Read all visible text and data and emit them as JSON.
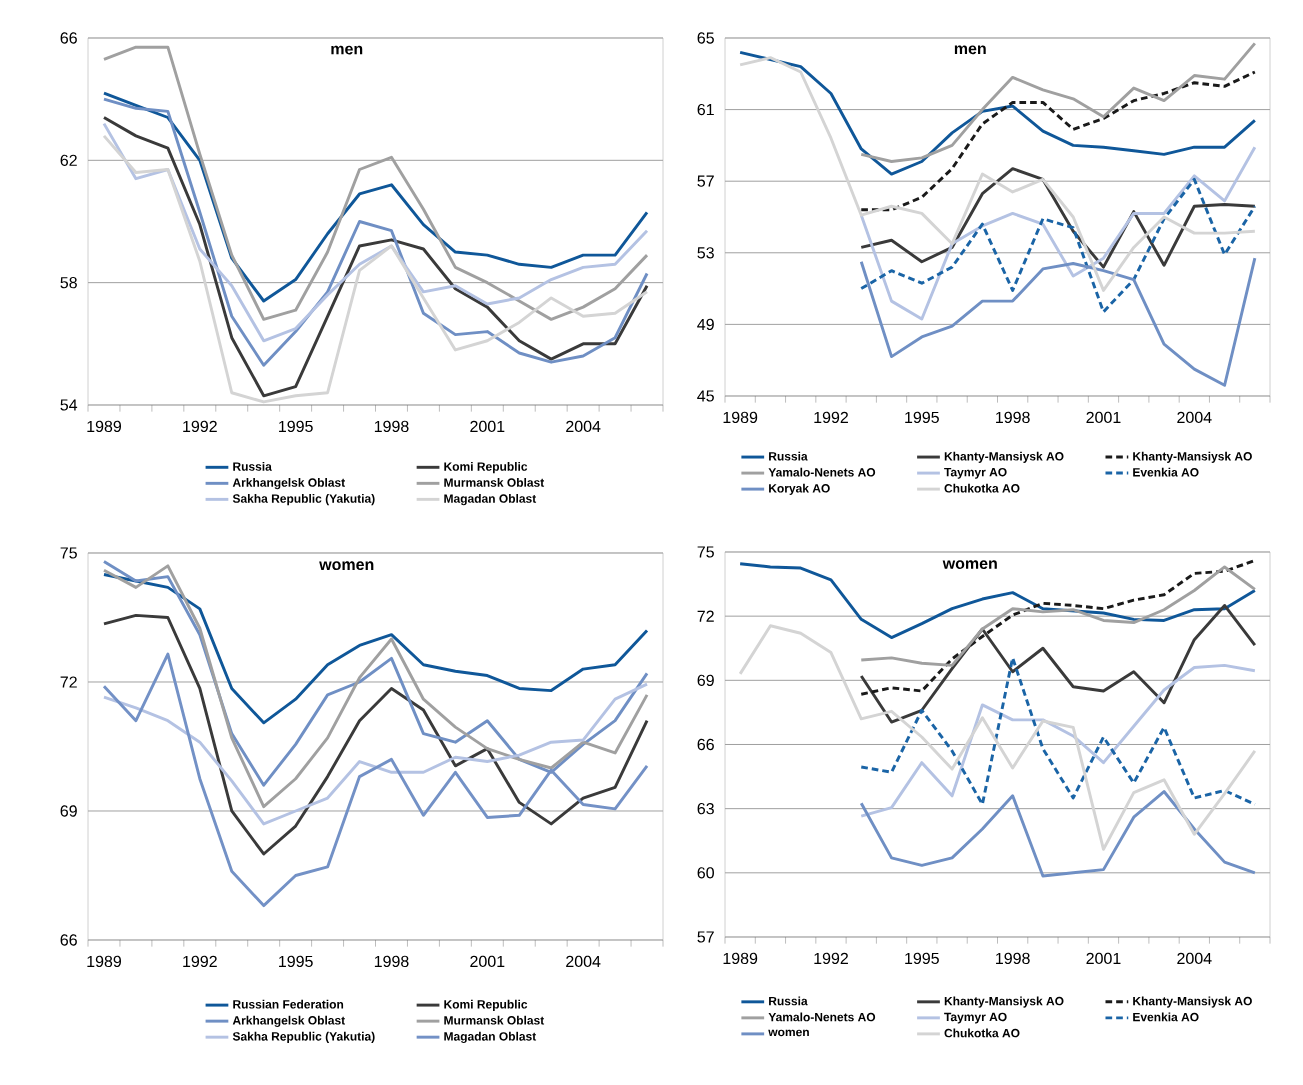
{
  "chart_data": [
    {
      "type": "line",
      "title": "men",
      "categories": [
        "1989",
        null,
        null,
        "1992",
        null,
        null,
        "1995",
        null,
        null,
        "1998",
        null,
        null,
        "2001",
        null,
        null,
        "2004",
        null,
        null
      ],
      "ylim": [
        54,
        66
      ],
      "yticks": [
        54,
        58,
        62,
        66
      ],
      "grid": "y",
      "legend": "bottom",
      "line_style": "solid",
      "series": [
        {
          "name": "Russia",
          "color": "#0f5799",
          "values": [
            64.2,
            63.8,
            63.4,
            62.0,
            58.8,
            57.4,
            58.1,
            59.6,
            60.9,
            61.2,
            59.9,
            59.0,
            58.9,
            58.6,
            58.5,
            58.9,
            58.9,
            60.3
          ]
        },
        {
          "name": "Komi Republic",
          "color": "#3a3a3a",
          "values": [
            63.4,
            62.8,
            62.4,
            59.9,
            56.2,
            54.3,
            54.6,
            56.9,
            59.2,
            59.4,
            59.1,
            57.8,
            57.2,
            56.1,
            55.5,
            56.0,
            56.0,
            57.9
          ]
        },
        {
          "name": "Arkhangelsk Oblast",
          "color": "#6f8fc4",
          "values": [
            64.0,
            63.7,
            63.6,
            60.3,
            56.9,
            55.3,
            56.4,
            57.7,
            60.0,
            59.7,
            57.0,
            56.3,
            56.4,
            55.7,
            55.4,
            55.6,
            56.2,
            58.3
          ]
        },
        {
          "name": "Murmansk Oblast",
          "color": "#a0a0a0",
          "values": [
            65.3,
            65.7,
            65.7,
            62.2,
            58.9,
            56.8,
            57.1,
            59.0,
            61.7,
            62.1,
            60.4,
            58.5,
            58.0,
            57.4,
            56.8,
            57.2,
            57.8,
            58.9
          ]
        },
        {
          "name": "Sakha Republic (Yakutia)",
          "color": "#b4c2e3",
          "values": [
            63.2,
            61.4,
            61.7,
            59.1,
            57.9,
            56.1,
            56.5,
            57.6,
            58.6,
            59.2,
            57.7,
            57.9,
            57.3,
            57.5,
            58.1,
            58.5,
            58.6,
            59.7
          ]
        },
        {
          "name": "Magadan Oblast",
          "color": "#d4d4d4",
          "values": [
            62.8,
            61.6,
            61.7,
            58.7,
            54.4,
            54.1,
            54.3,
            54.4,
            58.4,
            59.2,
            57.5,
            55.8,
            56.1,
            56.7,
            57.5,
            56.9,
            57.0,
            57.7
          ]
        }
      ]
    },
    {
      "type": "line",
      "title": "men",
      "categories": [
        "1989",
        null,
        null,
        "1992",
        null,
        null,
        "1995",
        null,
        null,
        "1998",
        null,
        null,
        "2001",
        null,
        null,
        "2004",
        null,
        null
      ],
      "ylim": [
        45,
        65
      ],
      "yticks": [
        45,
        49,
        53,
        57,
        61,
        65
      ],
      "grid": "y",
      "legend": "bottom",
      "line_style": "solid",
      "series": [
        {
          "name": "Russia",
          "color": "#0f5799",
          "values": [
            64.2,
            63.8,
            63.4,
            61.9,
            58.8,
            57.4,
            58.1,
            59.7,
            60.9,
            61.2,
            59.8,
            59.0,
            58.9,
            58.7,
            58.5,
            58.9,
            58.9,
            60.4
          ]
        },
        {
          "name": "Khanty-Mansiysk AO",
          "color": "#3a3a3a",
          "values": [
            null,
            null,
            null,
            null,
            53.3,
            53.7,
            52.5,
            53.3,
            56.3,
            57.7,
            57.1,
            54.2,
            52.2,
            55.3,
            52.3,
            55.6,
            55.7,
            55.6
          ]
        },
        {
          "name": "Khanty-Mansiysk AO",
          "color": "#1a1a1a",
          "line_style": "dashed",
          "values": [
            null,
            null,
            null,
            null,
            55.4,
            55.4,
            56.1,
            57.7,
            60.2,
            61.4,
            61.4,
            59.9,
            60.5,
            61.5,
            61.9,
            62.5,
            62.3,
            63.1
          ]
        },
        {
          "name": "Yamalo-Nenets AO",
          "color": "#a0a0a0",
          "values": [
            null,
            null,
            null,
            null,
            58.5,
            58.1,
            58.3,
            59.0,
            61.0,
            62.8,
            62.1,
            61.6,
            60.6,
            62.2,
            61.5,
            62.9,
            62.7,
            64.7
          ]
        },
        {
          "name": "Taymyr AO",
          "color": "#b4c2e3",
          "values": [
            null,
            null,
            null,
            null,
            55.1,
            50.3,
            49.3,
            53.5,
            54.5,
            55.2,
            54.6,
            51.7,
            52.7,
            55.2,
            55.2,
            57.3,
            55.9,
            58.9
          ]
        },
        {
          "name": "Evenkia AO",
          "color": "#1a64a6",
          "line_style": "dashed",
          "values": [
            null,
            null,
            null,
            null,
            51.0,
            52.0,
            51.3,
            52.2,
            54.6,
            50.9,
            54.9,
            54.4,
            49.7,
            51.5,
            54.9,
            57.1,
            52.9,
            55.6
          ]
        },
        {
          "name": "Koryak AO",
          "color": "#6f8fc4",
          "values": [
            null,
            null,
            null,
            null,
            52.5,
            47.2,
            48.3,
            48.9,
            50.3,
            50.3,
            52.1,
            52.4,
            52.0,
            51.5,
            47.9,
            46.5,
            45.6,
            52.7
          ]
        },
        {
          "name": "Chukotka AO",
          "color": "#d4d4d4",
          "values": [
            63.5,
            63.9,
            63.1,
            59.4,
            55.1,
            55.6,
            55.2,
            53.5,
            57.4,
            56.4,
            57.1,
            55.0,
            50.9,
            53.3,
            55.0,
            54.1,
            54.1,
            54.2
          ]
        }
      ]
    },
    {
      "type": "line",
      "title": "women",
      "categories": [
        "1989",
        null,
        null,
        "1992",
        null,
        null,
        "1995",
        null,
        null,
        "1998",
        null,
        null,
        "2001",
        null,
        null,
        "2004",
        null,
        null
      ],
      "ylim": [
        66,
        75
      ],
      "yticks": [
        66,
        69,
        72,
        75
      ],
      "grid": "y",
      "legend": "bottom",
      "line_style": "solid",
      "series": [
        {
          "name": "Russian Federation",
          "color": "#0f5799",
          "values": [
            74.5,
            74.35,
            74.2,
            73.7,
            71.85,
            71.05,
            71.6,
            72.4,
            72.85,
            73.1,
            72.4,
            72.25,
            72.15,
            71.85,
            71.8,
            72.3,
            72.4,
            73.2
          ]
        },
        {
          "name": "Komi Republic",
          "color": "#3a3a3a",
          "values": [
            73.35,
            73.55,
            73.5,
            71.85,
            69.0,
            68.0,
            68.65,
            69.8,
            71.1,
            71.85,
            71.35,
            70.05,
            70.45,
            69.2,
            68.7,
            69.3,
            69.55,
            71.1
          ]
        },
        {
          "name": "Arkhangelsk Oblast",
          "color": "#6f8fc4",
          "values": [
            74.8,
            74.35,
            74.45,
            73.1,
            70.8,
            69.6,
            70.55,
            71.7,
            72.0,
            72.55,
            70.8,
            70.6,
            71.1,
            70.2,
            69.9,
            70.55,
            71.1,
            72.2
          ]
        },
        {
          "name": "Murmansk Oblast",
          "color": "#a0a0a0",
          "values": [
            74.6,
            74.2,
            74.7,
            73.25,
            70.7,
            69.1,
            69.75,
            70.7,
            72.1,
            73.0,
            71.6,
            70.95,
            70.45,
            70.2,
            70.0,
            70.6,
            70.35,
            71.7
          ]
        },
        {
          "name": "Sakha Republic (Yakutia)",
          "color": "#b4c2e3",
          "values": [
            71.65,
            71.4,
            71.1,
            70.6,
            69.7,
            68.7,
            69.0,
            69.3,
            70.15,
            69.9,
            69.9,
            70.25,
            70.15,
            70.3,
            70.6,
            70.65,
            71.6,
            71.95
          ]
        },
        {
          "name": "Magadan Oblast",
          "color": "#7391c6",
          "values": [
            71.9,
            71.1,
            72.65,
            69.75,
            67.6,
            66.8,
            67.5,
            67.7,
            69.8,
            70.2,
            68.9,
            69.9,
            68.85,
            68.9,
            69.95,
            69.15,
            69.05,
            70.05
          ]
        }
      ]
    },
    {
      "type": "line",
      "title": "women",
      "categories": [
        "1989",
        null,
        null,
        "1992",
        null,
        null,
        "1995",
        null,
        null,
        "1998",
        null,
        null,
        "2001",
        null,
        null,
        "2004",
        null,
        null
      ],
      "ylim": [
        57,
        75
      ],
      "yticks": [
        57,
        60,
        63,
        66,
        69,
        72,
        75
      ],
      "grid": "y",
      "legend": "bottom",
      "line_style": "solid",
      "series": [
        {
          "name": "Russia",
          "color": "#0f5799",
          "values": [
            74.45,
            74.3,
            74.25,
            73.7,
            71.85,
            71.0,
            71.65,
            72.35,
            72.8,
            73.1,
            72.35,
            72.25,
            72.15,
            71.85,
            71.8,
            72.3,
            72.35,
            73.2
          ]
        },
        {
          "name": "Khanty-Mansiysk AO",
          "color": "#3a3a3a",
          "values": [
            null,
            null,
            null,
            null,
            69.2,
            67.05,
            67.6,
            69.55,
            71.4,
            69.4,
            70.5,
            68.7,
            68.5,
            69.4,
            67.95,
            70.9,
            72.5,
            70.65
          ]
        },
        {
          "name": "Khanty-Mansiysk AO",
          "color": "#1a1a1a",
          "line_style": "dashed",
          "values": [
            null,
            null,
            null,
            null,
            68.35,
            68.65,
            68.5,
            70.0,
            71.05,
            72.05,
            72.6,
            72.5,
            72.35,
            72.75,
            73.0,
            74.0,
            74.1,
            74.6
          ]
        },
        {
          "name": "Yamalo-Nenets AO",
          "color": "#a0a0a0",
          "values": [
            null,
            null,
            null,
            null,
            69.95,
            70.05,
            69.8,
            69.7,
            71.4,
            72.35,
            72.2,
            72.3,
            71.8,
            71.7,
            72.3,
            73.2,
            74.3,
            73.25
          ]
        },
        {
          "name": "Taymyr AO",
          "color": "#b4c2e3",
          "values": [
            null,
            null,
            null,
            null,
            62.65,
            63.05,
            65.15,
            63.6,
            67.85,
            67.15,
            67.15,
            66.4,
            65.15,
            66.85,
            68.55,
            69.6,
            69.7,
            69.45
          ]
        },
        {
          "name": "Evenkia AO",
          "color": "#1a64a6",
          "line_style": "dashed",
          "values": [
            null,
            null,
            null,
            null,
            64.95,
            64.7,
            67.6,
            65.7,
            63.2,
            70.05,
            65.8,
            63.5,
            66.35,
            64.2,
            66.8,
            63.5,
            63.85,
            63.2
          ]
        },
        {
          "name": "women",
          "color": "#6f8fc4",
          "values": [
            null,
            null,
            null,
            null,
            63.25,
            60.7,
            60.35,
            60.7,
            62.05,
            63.6,
            59.85,
            60.0,
            60.15,
            62.6,
            63.8,
            62.05,
            60.5,
            60.0
          ]
        },
        {
          "name": "Chukotka AO",
          "color": "#d4d4d4",
          "values": [
            69.3,
            71.55,
            71.2,
            70.3,
            67.2,
            67.55,
            66.35,
            64.85,
            67.25,
            64.9,
            67.1,
            66.8,
            61.1,
            63.75,
            64.35,
            61.8,
            63.7,
            65.7
          ]
        }
      ]
    }
  ]
}
